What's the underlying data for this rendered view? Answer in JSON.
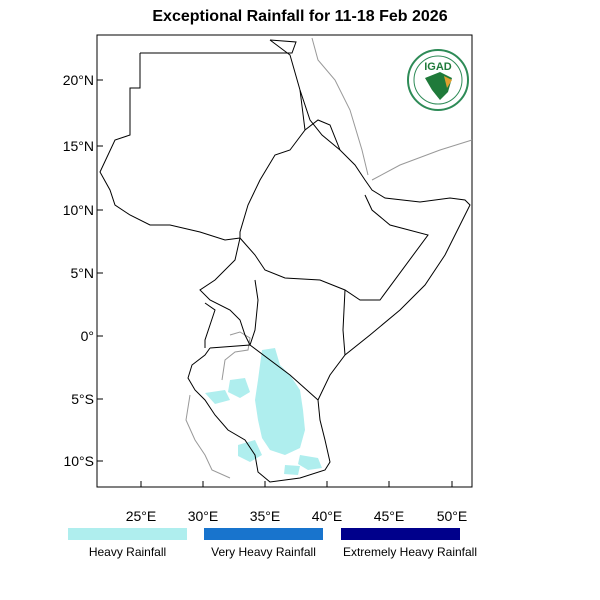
{
  "title": "Exceptional Rainfall for 11-18 Feb 2026",
  "logo_text": "IGAD",
  "map": {
    "lat_ticks": [
      "20°N",
      "15°N",
      "10°N",
      "5°N",
      "0°",
      "5°S",
      "10°S"
    ],
    "lon_ticks": [
      "25°E",
      "30°E",
      "35°E",
      "40°E",
      "45°E",
      "50°E"
    ]
  },
  "legend": [
    {
      "label": "Heavy Rainfall",
      "color": "#afeeee"
    },
    {
      "label": "Very Heavy Rainfall",
      "color": "#1874cd"
    },
    {
      "label": "Extremely Heavy Rainfall",
      "color": "#00008b"
    }
  ]
}
